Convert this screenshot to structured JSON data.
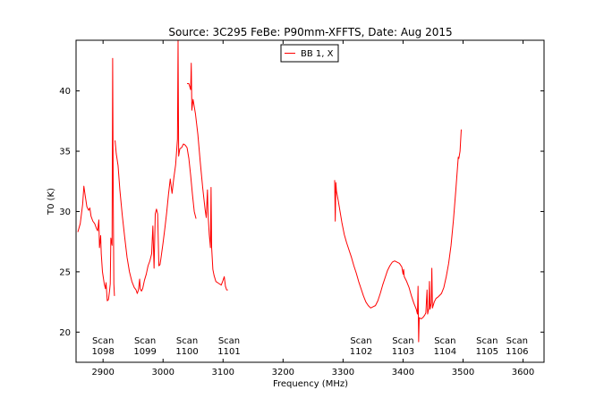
{
  "chart_data": {
    "type": "line",
    "title": "Source: 3C295 FeBe: P90mm-XFFTS, Date: Aug 2015",
    "xlabel": "Frequency (MHz)",
    "ylabel": "T0 (K)",
    "xlim": [
      2855,
      3635
    ],
    "ylim": [
      17.5,
      44.2
    ],
    "xticks": [
      2900,
      3000,
      3100,
      3200,
      3300,
      3400,
      3500,
      3600
    ],
    "yticks": [
      20,
      25,
      30,
      35,
      40
    ],
    "grid": false,
    "legend_position": "top-center",
    "series": [
      {
        "name": "BB 1, X",
        "color": "#ff0000",
        "segments": [
          [
            [
              2858,
              28.3
            ],
            [
              2862,
              29.0
            ],
            [
              2866,
              30.6
            ],
            [
              2868,
              32.1
            ],
            [
              2870,
              31.4
            ],
            [
              2873,
              30.4
            ],
            [
              2876,
              30.1
            ],
            [
              2878,
              30.3
            ],
            [
              2880,
              29.6
            ],
            [
              2883,
              29.2
            ],
            [
              2886,
              29.0
            ],
            [
              2889,
              28.6
            ],
            [
              2891,
              28.4
            ],
            [
              2893,
              29.3
            ],
            [
              2894,
              27.0
            ],
            [
              2896,
              28.0
            ],
            [
              2897,
              26.5
            ],
            [
              2899,
              25.0
            ],
            [
              2902,
              24.0
            ],
            [
              2904,
              23.6
            ],
            [
              2905,
              24.1
            ],
            [
              2907,
              22.6
            ],
            [
              2909,
              22.7
            ],
            [
              2911,
              23.5
            ],
            [
              2912,
              24.0
            ],
            [
              2913,
              27.8
            ],
            [
              2915,
              27.2
            ],
            [
              2916,
              42.7
            ],
            [
              2917,
              31.0
            ],
            [
              2918,
              24.0
            ],
            [
              2919,
              23.0
            ]
          ],
          [
            [
              2920,
              35.9
            ],
            [
              2922,
              34.8
            ],
            [
              2925,
              33.8
            ],
            [
              2928,
              31.8
            ],
            [
              2932,
              29.7
            ],
            [
              2936,
              27.9
            ],
            [
              2940,
              26.2
            ],
            [
              2944,
              25.0
            ],
            [
              2948,
              24.2
            ],
            [
              2952,
              23.7
            ],
            [
              2955,
              23.5
            ],
            [
              2957,
              23.2
            ],
            [
              2959,
              23.5
            ],
            [
              2961,
              24.4
            ],
            [
              2962,
              23.6
            ],
            [
              2964,
              23.4
            ],
            [
              2966,
              23.6
            ],
            [
              2969,
              24.3
            ],
            [
              2972,
              24.8
            ],
            [
              2975,
              25.5
            ],
            [
              2978,
              25.9
            ],
            [
              2981,
              26.5
            ],
            [
              2983,
              28.8
            ],
            [
              2985,
              25.3
            ],
            [
              2987,
              29.8
            ],
            [
              2989,
              30.2
            ],
            [
              2991,
              29.8
            ],
            [
              2993,
              25.5
            ],
            [
              2995,
              25.6
            ],
            [
              2997,
              26.3
            ],
            [
              3000,
              27.4
            ],
            [
              3003,
              28.6
            ],
            [
              3006,
              29.9
            ],
            [
              3009,
              31.4
            ],
            [
              3012,
              32.7
            ],
            [
              3015,
              31.5
            ],
            [
              3018,
              32.8
            ],
            [
              3021,
              33.9
            ],
            [
              3024,
              36.0
            ],
            [
              3025,
              44.2
            ],
            [
              3026,
              34.6
            ],
            [
              3028,
              35.2
            ],
            [
              3031,
              35.3
            ],
            [
              3034,
              35.6
            ],
            [
              3037,
              35.5
            ],
            [
              3040,
              35.3
            ],
            [
              3043,
              34.4
            ],
            [
              3046,
              33.0
            ],
            [
              3049,
              31.4
            ],
            [
              3052,
              30.0
            ],
            [
              3055,
              29.4
            ]
          ],
          [
            [
              3040,
              40.6
            ],
            [
              3043,
              40.6
            ],
            [
              3046,
              40.1
            ],
            [
              3047,
              42.3
            ],
            [
              3048,
              38.4
            ],
            [
              3050,
              39.3
            ],
            [
              3054,
              38.1
            ],
            [
              3058,
              36.4
            ],
            [
              3062,
              34.1
            ],
            [
              3066,
              32.0
            ],
            [
              3070,
              30.2
            ],
            [
              3072,
              29.5
            ],
            [
              3074,
              31.8
            ],
            [
              3075,
              29.8
            ],
            [
              3077,
              28.1
            ],
            [
              3079,
              27.0
            ],
            [
              3080,
              32.0
            ],
            [
              3081,
              27.0
            ],
            [
              3083,
              25.2
            ],
            [
              3085,
              24.7
            ],
            [
              3088,
              24.2
            ],
            [
              3091,
              24.1
            ],
            [
              3094,
              24.0
            ],
            [
              3097,
              23.9
            ],
            [
              3100,
              24.3
            ],
            [
              3102,
              24.6
            ],
            [
              3104,
              23.8
            ],
            [
              3106,
              23.5
            ],
            [
              3108,
              23.5
            ]
          ],
          [
            [
              3286,
              32.6
            ],
            [
              3287,
              29.2
            ],
            [
              3288,
              32.4
            ],
            [
              3289,
              31.7
            ],
            [
              3292,
              30.9
            ],
            [
              3295,
              30.0
            ],
            [
              3298,
              29.1
            ],
            [
              3302,
              28.1
            ],
            [
              3306,
              27.4
            ],
            [
              3310,
              26.8
            ],
            [
              3314,
              26.2
            ],
            [
              3318,
              25.5
            ],
            [
              3322,
              24.9
            ],
            [
              3326,
              24.2
            ],
            [
              3330,
              23.6
            ],
            [
              3334,
              23.0
            ],
            [
              3338,
              22.5
            ],
            [
              3342,
              22.2
            ],
            [
              3346,
              22.0
            ],
            [
              3350,
              22.1
            ],
            [
              3354,
              22.2
            ],
            [
              3358,
              22.6
            ],
            [
              3362,
              23.2
            ],
            [
              3366,
              23.9
            ],
            [
              3370,
              24.5
            ],
            [
              3374,
              25.1
            ],
            [
              3378,
              25.5
            ],
            [
              3382,
              25.8
            ],
            [
              3386,
              25.9
            ],
            [
              3390,
              25.8
            ],
            [
              3394,
              25.7
            ],
            [
              3398,
              25.4
            ],
            [
              3400,
              24.8
            ],
            [
              3401,
              25.2
            ],
            [
              3402,
              24.6
            ],
            [
              3406,
              24.2
            ],
            [
              3410,
              23.7
            ],
            [
              3414,
              23.0
            ],
            [
              3418,
              22.4
            ],
            [
              3422,
              21.9
            ],
            [
              3424,
              21.5
            ],
            [
              3425,
              23.8
            ],
            [
              3426,
              19.2
            ],
            [
              3427,
              21.2
            ],
            [
              3430,
              21.1
            ],
            [
              3433,
              21.2
            ],
            [
              3436,
              21.4
            ],
            [
              3438,
              21.6
            ],
            [
              3440,
              23.5
            ],
            [
              3441,
              21.5
            ],
            [
              3443,
              22.0
            ],
            [
              3444,
              24.2
            ],
            [
              3445,
              21.9
            ],
            [
              3447,
              22.4
            ],
            [
              3448,
              25.3
            ],
            [
              3449,
              22.0
            ],
            [
              3452,
              22.5
            ],
            [
              3455,
              22.8
            ],
            [
              3458,
              22.9
            ],
            [
              3460,
              23.0
            ],
            [
              3464,
              23.2
            ],
            [
              3468,
              23.7
            ],
            [
              3472,
              24.6
            ],
            [
              3476,
              25.7
            ],
            [
              3480,
              27.2
            ],
            [
              3484,
              29.3
            ],
            [
              3488,
              31.8
            ],
            [
              3492,
              34.5
            ],
            [
              3493,
              34.4
            ],
            [
              3495,
              35.0
            ],
            [
              3497,
              36.8
            ]
          ]
        ]
      }
    ],
    "annotations": [
      {
        "line1": "Scan",
        "line2": "1098",
        "x": 2900
      },
      {
        "line1": "Scan",
        "line2": "1099",
        "x": 2970
      },
      {
        "line1": "Scan",
        "line2": "1100",
        "x": 3040
      },
      {
        "line1": "Scan",
        "line2": "1101",
        "x": 3110
      },
      {
        "line1": "Scan",
        "line2": "1102",
        "x": 3330
      },
      {
        "line1": "Scan",
        "line2": "1103",
        "x": 3400
      },
      {
        "line1": "Scan",
        "line2": "1104",
        "x": 3470
      },
      {
        "line1": "Scan",
        "line2": "1105",
        "x": 3540
      },
      {
        "line1": "Scan",
        "line2": "1106",
        "x": 3590
      }
    ]
  }
}
